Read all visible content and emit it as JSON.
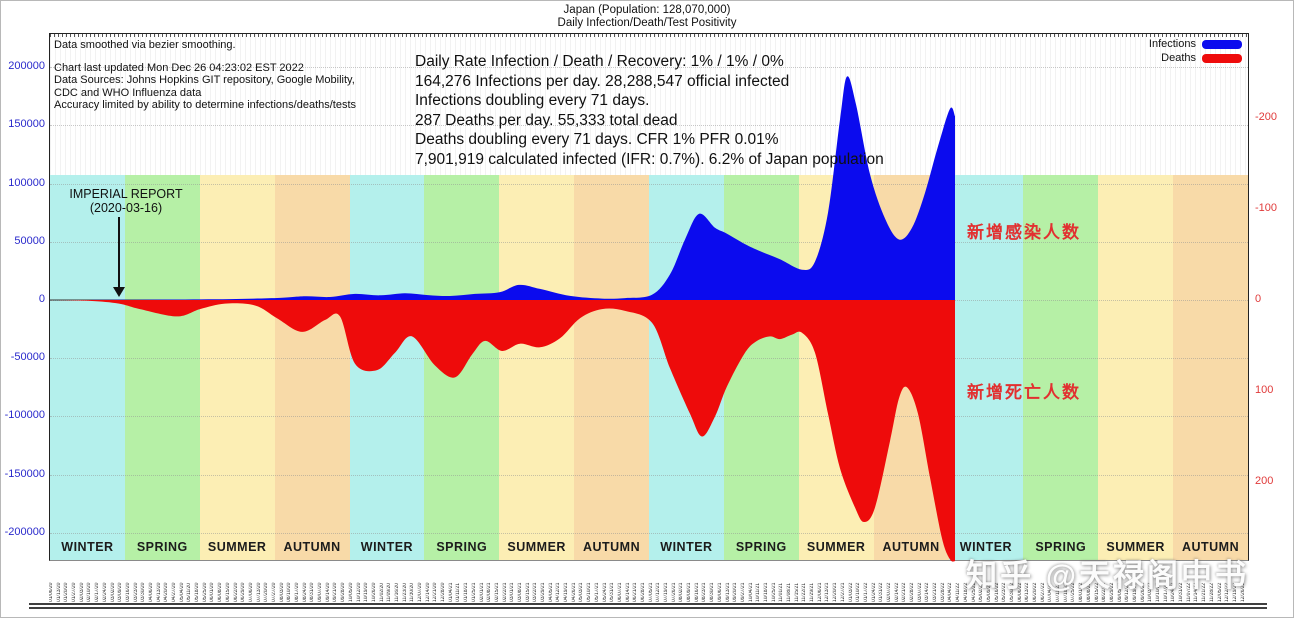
{
  "page": {
    "title_line1": "Japan (Population: 128,070,000)",
    "title_line2": "Daily Infection/Death/Test Positivity",
    "watermark": "知乎 @天禄阁中书"
  },
  "info_box": {
    "lines": [
      "Data smoothed via bezier smoothing.",
      "",
      "Chart last updated Mon Dec 26 04:23:02 EST 2022",
      "Data Sources: Johns Hopkins GIT repository, Google Mobility,",
      "CDC and WHO Influenza data",
      "Accuracy limited by ability to determine infections/deaths/tests"
    ]
  },
  "stats": {
    "lines": [
      "Daily Rate Infection / Death / Recovery: 1% / 1% / 0%",
      "164,276 Infections per day.  28,288,547 official infected",
      "Infections doubling every 71 days.",
      "287 Deaths per day.  55,333 total dead",
      "Deaths doubling every 71 days.  CFR 1%  PFR 0.01%",
      "7,901,919 calculated infected (IFR: 0.7%).  6.2% of Japan population"
    ]
  },
  "legend": {
    "items": [
      {
        "label": "Infections",
        "color": "#0b0bee"
      },
      {
        "label": "Deaths",
        "color": "#ee0b0b"
      }
    ]
  },
  "annotations": {
    "imperial_line1": "IMPERIAL REPORT",
    "imperial_line2": "(2020-03-16)",
    "infections_cn": "新增感染人数",
    "deaths_cn": "新增死亡人数"
  },
  "chart_data": {
    "type": "area",
    "title": "Japan (Population: 128,070,000) — Daily Infection/Death/Test Positivity",
    "grid": true,
    "legend_position": "top-right",
    "left_axis": {
      "ticks": [
        200000,
        150000,
        100000,
        50000,
        0,
        -50000,
        -100000,
        -150000,
        -200000
      ],
      "ylim": [
        -225000,
        228000
      ],
      "color": "#2a2acc",
      "meaning": "daily infections (blue area plotted upward)"
    },
    "right_axis": {
      "ticks": [
        -200,
        -100,
        0,
        100,
        200
      ],
      "ylim": [
        -292,
        288
      ],
      "inverted": true,
      "color": "#e03a3a",
      "meaning": "daily deaths (red area plotted downward)"
    },
    "x_axis": {
      "start": "2020-01-06",
      "interval_days": 7,
      "weeks": 156,
      "note": "dense rotated weekly date labels, illegible at rendered scale"
    },
    "seasons": [
      {
        "label": "WINTER",
        "color": "#b4f0ec"
      },
      {
        "label": "SPRING",
        "color": "#b6f0a6"
      },
      {
        "label": "SUMMER",
        "color": "#fceeb4"
      },
      {
        "label": "AUTUMN",
        "color": "#f8daa8"
      },
      {
        "label": "WINTER",
        "color": "#b4f0ec"
      },
      {
        "label": "SPRING",
        "color": "#b6f0a6"
      },
      {
        "label": "SUMMER",
        "color": "#fceeb4"
      },
      {
        "label": "AUTUMN",
        "color": "#f8daa8"
      },
      {
        "label": "WINTER",
        "color": "#b4f0ec"
      },
      {
        "label": "SPRING",
        "color": "#b6f0a6"
      },
      {
        "label": "SUMMER",
        "color": "#fceeb4"
      },
      {
        "label": "AUTUMN",
        "color": "#f8daa8"
      },
      {
        "label": "WINTER",
        "color": "#b4f0ec"
      },
      {
        "label": "SPRING",
        "color": "#b6f0a6"
      },
      {
        "label": "SUMMER",
        "color": "#fceeb4"
      },
      {
        "label": "AUTUMN",
        "color": "#f8daa8"
      }
    ],
    "series": [
      {
        "name": "Infections",
        "color": "#0b0bee",
        "axis": "left",
        "x_unit": "px_from_plot_left (0-1200 = Dec 2019 - Dec 2022; data ends at 905)",
        "points": [
          [
            0,
            0
          ],
          [
            60,
            100
          ],
          [
            120,
            400
          ],
          [
            180,
            800
          ],
          [
            230,
            1800
          ],
          [
            255,
            3200
          ],
          [
            280,
            2600
          ],
          [
            305,
            5200
          ],
          [
            330,
            4000
          ],
          [
            355,
            5800
          ],
          [
            378,
            4200
          ],
          [
            400,
            3400
          ],
          [
            425,
            5200
          ],
          [
            450,
            6800
          ],
          [
            469,
            13000
          ],
          [
            490,
            9500
          ],
          [
            520,
            3500
          ],
          [
            552,
            1200
          ],
          [
            575,
            1600
          ],
          [
            602,
            4500
          ],
          [
            620,
            22000
          ],
          [
            635,
            52000
          ],
          [
            649,
            74000
          ],
          [
            665,
            62000
          ],
          [
            677,
            57000
          ],
          [
            695,
            48000
          ],
          [
            710,
            42000
          ],
          [
            730,
            35000
          ],
          [
            752,
            26000
          ],
          [
            765,
            33000
          ],
          [
            778,
            75000
          ],
          [
            790,
            155000
          ],
          [
            797,
            192000
          ],
          [
            806,
            168000
          ],
          [
            820,
            108000
          ],
          [
            835,
            70000
          ],
          [
            849,
            52000
          ],
          [
            862,
            62000
          ],
          [
            875,
            92000
          ],
          [
            888,
            132000
          ],
          [
            900,
            164276
          ],
          [
            905,
            158000
          ]
        ]
      },
      {
        "name": "Deaths",
        "color": "#ee0b0b",
        "axis": "right",
        "plotted_downward": true,
        "x_unit": "px_from_plot_left (0-1200 = Dec 2019 - Dec 2022; data ends at 905)",
        "points": [
          [
            0,
            0
          ],
          [
            40,
            1
          ],
          [
            69,
            4
          ],
          [
            90,
            10
          ],
          [
            127,
            18
          ],
          [
            150,
            10
          ],
          [
            175,
            4
          ],
          [
            205,
            6
          ],
          [
            227,
            20
          ],
          [
            252,
            35
          ],
          [
            275,
            22
          ],
          [
            290,
            18
          ],
          [
            305,
            70
          ],
          [
            327,
            77
          ],
          [
            345,
            58
          ],
          [
            362,
            40
          ],
          [
            385,
            72
          ],
          [
            405,
            85
          ],
          [
            422,
            60
          ],
          [
            435,
            45
          ],
          [
            452,
            56
          ],
          [
            470,
            48
          ],
          [
            490,
            52
          ],
          [
            510,
            42
          ],
          [
            530,
            20
          ],
          [
            552,
            10
          ],
          [
            575,
            12
          ],
          [
            602,
            25
          ],
          [
            620,
            75
          ],
          [
            640,
            125
          ],
          [
            652,
            150
          ],
          [
            665,
            128
          ],
          [
            677,
            95
          ],
          [
            695,
            58
          ],
          [
            707,
            45
          ],
          [
            720,
            40
          ],
          [
            730,
            43
          ],
          [
            742,
            38
          ],
          [
            752,
            36
          ],
          [
            765,
            58
          ],
          [
            778,
            125
          ],
          [
            790,
            185
          ],
          [
            805,
            228
          ],
          [
            814,
            244
          ],
          [
            825,
            228
          ],
          [
            840,
            155
          ],
          [
            849,
            108
          ],
          [
            857,
            96
          ],
          [
            868,
            125
          ],
          [
            880,
            195
          ],
          [
            892,
            262
          ],
          [
            900,
            285
          ],
          [
            905,
            287
          ]
        ]
      }
    ]
  }
}
